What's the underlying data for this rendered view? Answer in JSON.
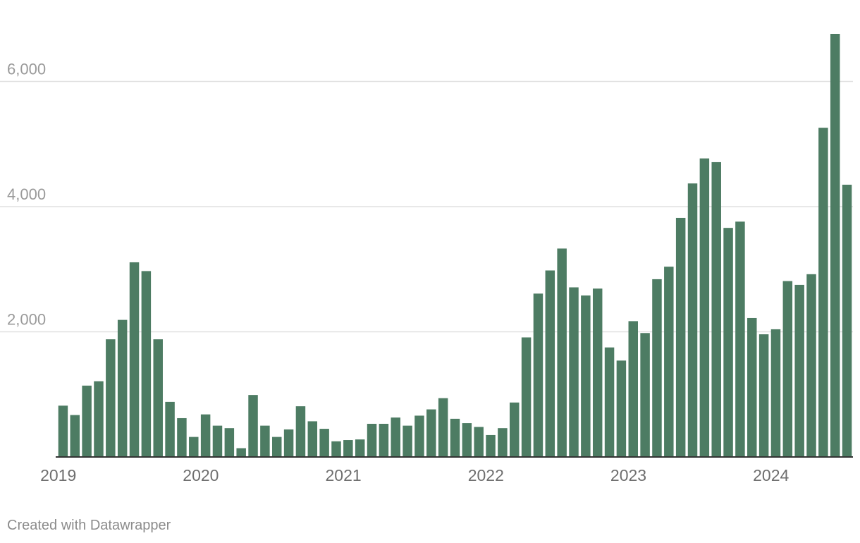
{
  "chart_data": {
    "type": "bar",
    "x": [
      "2019-01",
      "2019-02",
      "2019-03",
      "2019-04",
      "2019-05",
      "2019-06",
      "2019-07",
      "2019-08",
      "2019-09",
      "2019-10",
      "2019-11",
      "2019-12",
      "2020-01",
      "2020-02",
      "2020-03",
      "2020-04",
      "2020-05",
      "2020-06",
      "2020-07",
      "2020-08",
      "2020-09",
      "2020-10",
      "2020-11",
      "2020-12",
      "2021-01",
      "2021-02",
      "2021-03",
      "2021-04",
      "2021-05",
      "2021-06",
      "2021-07",
      "2021-08",
      "2021-09",
      "2021-10",
      "2021-11",
      "2021-12",
      "2022-01",
      "2022-02",
      "2022-03",
      "2022-04",
      "2022-05",
      "2022-06",
      "2022-07",
      "2022-08",
      "2022-09",
      "2022-10",
      "2022-11",
      "2022-12",
      "2023-01",
      "2023-02",
      "2023-03",
      "2023-04",
      "2023-05",
      "2023-06",
      "2023-07",
      "2023-08",
      "2023-09",
      "2023-10",
      "2023-11",
      "2023-12",
      "2024-01",
      "2024-02",
      "2024-03",
      "2024-04",
      "2024-05",
      "2024-06",
      "2024-07"
    ],
    "values": [
      820,
      670,
      1140,
      1210,
      1880,
      2190,
      3110,
      2970,
      1880,
      880,
      620,
      320,
      680,
      500,
      460,
      140,
      990,
      500,
      320,
      440,
      810,
      570,
      450,
      250,
      270,
      280,
      530,
      530,
      630,
      500,
      660,
      760,
      940,
      610,
      540,
      480,
      350,
      460,
      870,
      1910,
      2610,
      2980,
      3330,
      2710,
      2580,
      2690,
      1750,
      1540,
      2170,
      1980,
      2840,
      3040,
      3820,
      4370,
      4770,
      4710,
      3660,
      3760,
      2220,
      1960,
      2040,
      2810,
      2750,
      2920,
      5260,
      6760,
      4350
    ],
    "color": "#4d7c63",
    "ylim": [
      0,
      6760
    ],
    "y_ticks": [
      "2,000",
      "4,000",
      "6,000"
    ],
    "y_tick_values": [
      2000,
      4000,
      6000
    ],
    "x_ticks": [
      "2019",
      "2020",
      "2021",
      "2022",
      "2023",
      "2024"
    ],
    "grid": true
  },
  "footer": {
    "credit": "Created with Datawrapper"
  }
}
